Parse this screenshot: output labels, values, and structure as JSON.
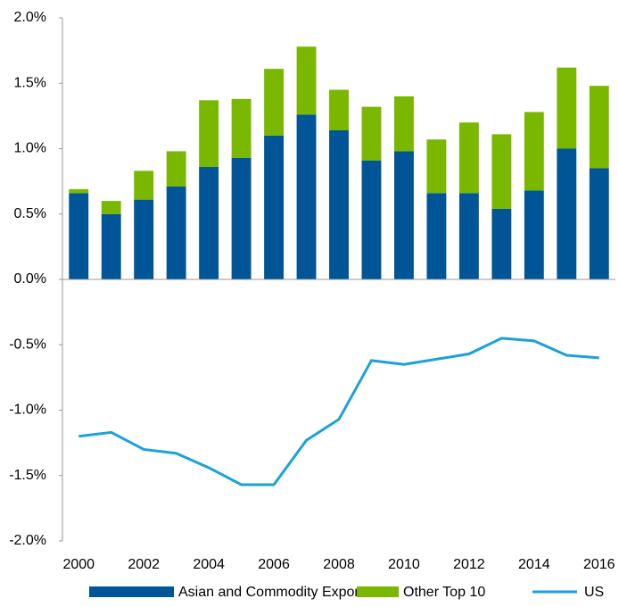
{
  "chart_data": {
    "type": "stacked-bar-line",
    "categories": [
      "2000",
      null,
      "2002",
      null,
      "2004",
      null,
      "2006",
      null,
      "2008",
      null,
      "2010",
      null,
      "2012",
      null,
      "2014",
      null,
      "2016"
    ],
    "series": [
      {
        "name": "Asian and Commodity Exporters",
        "color": "#005596",
        "kind": "bar",
        "values": [
          0.66,
          0.5,
          0.61,
          0.71,
          0.86,
          0.93,
          1.1,
          1.26,
          1.14,
          0.91,
          0.98,
          0.66,
          0.66,
          0.54,
          0.68,
          1.0,
          0.85
        ]
      },
      {
        "name": "Other Top 10",
        "color": "#7ab800",
        "kind": "bar",
        "values": [
          0.03,
          0.1,
          0.22,
          0.27,
          0.51,
          0.45,
          0.51,
          0.52,
          0.31,
          0.41,
          0.42,
          0.41,
          0.54,
          0.57,
          0.6,
          0.62,
          0.63
        ]
      },
      {
        "name": "US",
        "color": "#1ba1dc",
        "kind": "line",
        "values": [
          -1.2,
          -1.17,
          -1.3,
          -1.33,
          -1.44,
          -1.57,
          -1.57,
          -1.23,
          -1.07,
          -0.62,
          -0.65,
          -0.61,
          -0.57,
          -0.45,
          -0.47,
          -0.58,
          -0.6
        ]
      }
    ],
    "ylim": [
      -2.0,
      2.0
    ],
    "yticks": [
      {
        "value": 2.0,
        "label": "2.0%"
      },
      {
        "value": 1.5,
        "label": "1.5%"
      },
      {
        "value": 1.0,
        "label": "1.0%"
      },
      {
        "value": 0.5,
        "label": "0.5%"
      },
      {
        "value": 0,
        "label": "0.0%"
      },
      {
        "value": -0.5,
        "label": "-0.5%"
      },
      {
        "value": -1.0,
        "label": "-1.0%"
      },
      {
        "value": -1.5,
        "label": "-1.5%"
      },
      {
        "value": -2.0,
        "label": "-2.0%"
      }
    ],
    "grid": false
  }
}
